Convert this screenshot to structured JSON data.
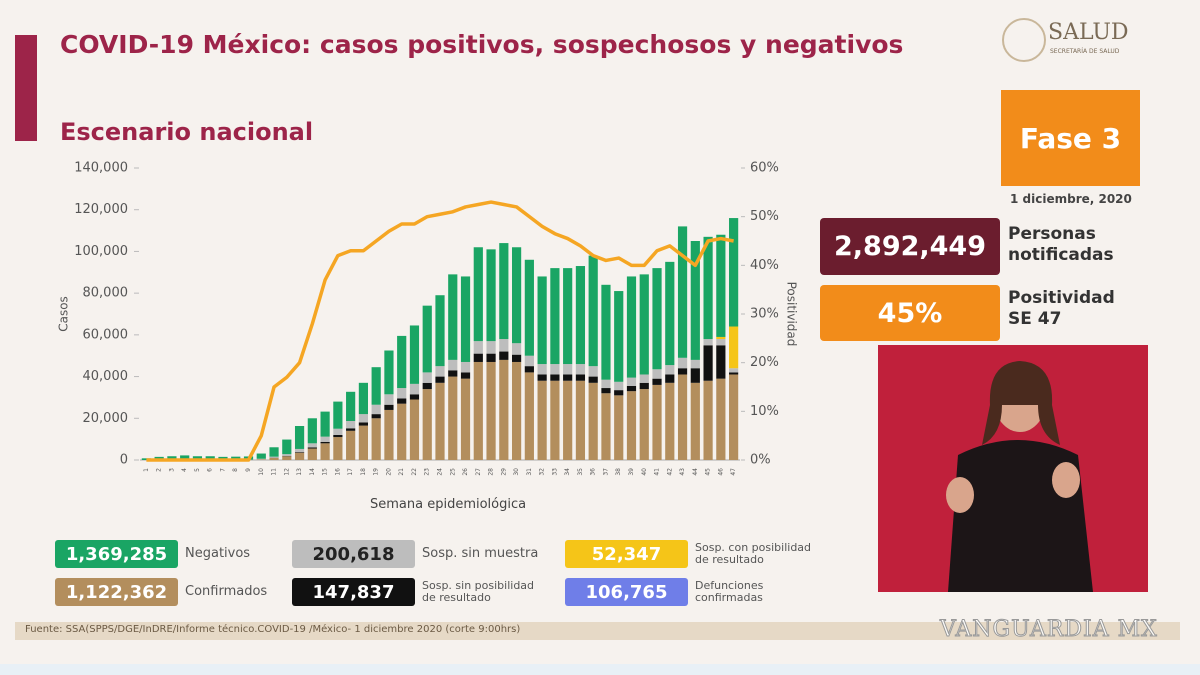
{
  "header": {
    "title": "COVID-19 México: casos positivos, sospechosos y negativos",
    "subtitle": "Escenario nacional",
    "logo_text": "SALUD",
    "logo_subtext": "SECRETARÍA DE SALUD"
  },
  "side": {
    "phase": "Fase 3",
    "date": "1 diciembre, 2020",
    "notified_value": "2,892,449",
    "notified_label": "Personas notificadas",
    "positivity_value": "45%",
    "positivity_label": "Positividad SE 47"
  },
  "chart_data": {
    "type": "stacked-bar-line",
    "xlabel": "Semana epidemiológica",
    "ylabel": "Casos",
    "y2label": "Positividad",
    "categories": [
      "1",
      "2",
      "3",
      "4",
      "5",
      "6",
      "7",
      "8",
      "9",
      "10",
      "11",
      "12",
      "13",
      "14",
      "15",
      "16",
      "17",
      "18",
      "19",
      "20",
      "21",
      "22",
      "23",
      "24",
      "25",
      "26",
      "27",
      "28",
      "29",
      "30",
      "31",
      "32",
      "33",
      "34",
      "35",
      "36",
      "37",
      "38",
      "39",
      "40",
      "41",
      "42",
      "43",
      "44",
      "45",
      "46",
      "47"
    ],
    "ylim": [
      0,
      140000
    ],
    "yticks": [
      0,
      {
        "value": 20000,
        "label": "20,000"
      },
      {
        "value": 40000,
        "label": "40,000"
      },
      {
        "value": 60000,
        "label": "60,000"
      },
      {
        "value": 80000,
        "label": "80,000"
      },
      {
        "value": 100000,
        "label": "100,000"
      },
      {
        "value": 120000,
        "label": "120,000"
      },
      {
        "value": 140000,
        "label": "140,000"
      }
    ],
    "y2lim": [
      0,
      60
    ],
    "y2ticks": [
      {
        "value": 0,
        "label": "0%"
      },
      {
        "value": 10,
        "label": "10%"
      },
      {
        "value": 20,
        "label": "20%"
      },
      {
        "value": 30,
        "label": "30%"
      },
      {
        "value": 40,
        "label": "40%"
      },
      {
        "value": 50,
        "label": "50%"
      },
      {
        "value": 60,
        "label": "60%"
      }
    ],
    "series": [
      {
        "name": "Confirmados",
        "total_label": "1,122,362",
        "color": "#b38e5d",
        "values": [
          0,
          0,
          0,
          0,
          0,
          0,
          0,
          0,
          100,
          300,
          1000,
          1800,
          3500,
          5500,
          8000,
          11000,
          14000,
          16500,
          20000,
          24000,
          27000,
          29000,
          34000,
          37000,
          40000,
          39000,
          47000,
          47000,
          48000,
          47000,
          42000,
          38000,
          38000,
          38000,
          38000,
          37000,
          32000,
          31000,
          33000,
          34000,
          36000,
          37000,
          41000,
          37000,
          38000,
          39000,
          41000
        ]
      },
      {
        "name": "Sosp. sin posibilidad de resultado",
        "total_label": "147,837",
        "color": "#111111",
        "values": [
          0,
          0,
          0,
          0,
          0,
          0,
          0,
          0,
          0,
          0,
          100,
          200,
          300,
          500,
          700,
          1000,
          1200,
          1500,
          2000,
          2500,
          2500,
          2500,
          3000,
          3000,
          3000,
          3000,
          4000,
          4000,
          4000,
          3500,
          3000,
          3000,
          3000,
          3000,
          3000,
          3000,
          2500,
          2500,
          2500,
          3000,
          3000,
          4000,
          3000,
          7000,
          17000,
          16000,
          1000
        ]
      },
      {
        "name": "Sosp. sin muestra",
        "total_label": "200,618",
        "color": "#bdbdbd",
        "values": [
          0,
          0,
          0,
          0,
          0,
          0,
          0,
          0,
          100,
          300,
          500,
          800,
          1500,
          2000,
          2500,
          3000,
          3500,
          4000,
          4500,
          5000,
          5000,
          5000,
          5000,
          5000,
          5000,
          5000,
          6000,
          6000,
          6000,
          5500,
          5000,
          5000,
          5000,
          5000,
          5000,
          5000,
          4000,
          4000,
          4000,
          4000,
          4500,
          4500,
          5000,
          4000,
          3000,
          3000,
          2000
        ]
      },
      {
        "name": "Sosp. con posibilidad de resultado",
        "total_label": "52,347",
        "color": "#f5c518",
        "values": [
          0,
          0,
          0,
          0,
          0,
          0,
          0,
          0,
          0,
          0,
          0,
          0,
          0,
          0,
          0,
          0,
          0,
          0,
          0,
          0,
          0,
          0,
          0,
          0,
          0,
          0,
          0,
          0,
          0,
          0,
          0,
          0,
          0,
          0,
          0,
          0,
          0,
          0,
          0,
          0,
          0,
          0,
          0,
          0,
          0,
          1000,
          20000
        ]
      },
      {
        "name": "Negativos",
        "total_label": "1,369,285",
        "color": "#1aa564",
        "values": [
          800,
          1500,
          1800,
          2200,
          1800,
          1800,
          1500,
          1600,
          1500,
          2500,
          4500,
          7000,
          11000,
          12000,
          12000,
          13000,
          14000,
          15000,
          18000,
          21000,
          25000,
          28000,
          32000,
          34000,
          41000,
          41000,
          45000,
          44000,
          46000,
          46000,
          46000,
          42000,
          46000,
          46000,
          47000,
          53000,
          45500,
          43500,
          48500,
          48000,
          48500,
          49500,
          63000,
          57000,
          49000,
          49000,
          52000
        ]
      },
      {
        "axis": "y2",
        "color": "#f5a623",
        "values": [
          0,
          0,
          0,
          0,
          0,
          0,
          0,
          0,
          0,
          5,
          15,
          17,
          20,
          28,
          37,
          42,
          43,
          43,
          45,
          47,
          48.5,
          48.5,
          50,
          50.5,
          51,
          52,
          52.5,
          53,
          52.5,
          52,
          50,
          48,
          46.5,
          45.5,
          44,
          42,
          41,
          41.5,
          40,
          40,
          43,
          44,
          42,
          40,
          45,
          45.5,
          45
        ]
      }
    ],
    "extra_legend": {
      "name": "Defunciones confirmadas",
      "total_label": "106,765",
      "color": "#6f7ee8"
    }
  },
  "footer": {
    "source": "Fuente: SSA(SPPS/DGE/InDRE/Informe técnico.COVID-19 /México- 1 diciembre 2020 (corte 9:00hrs)",
    "watermark": "VANGUARDIA MX"
  }
}
